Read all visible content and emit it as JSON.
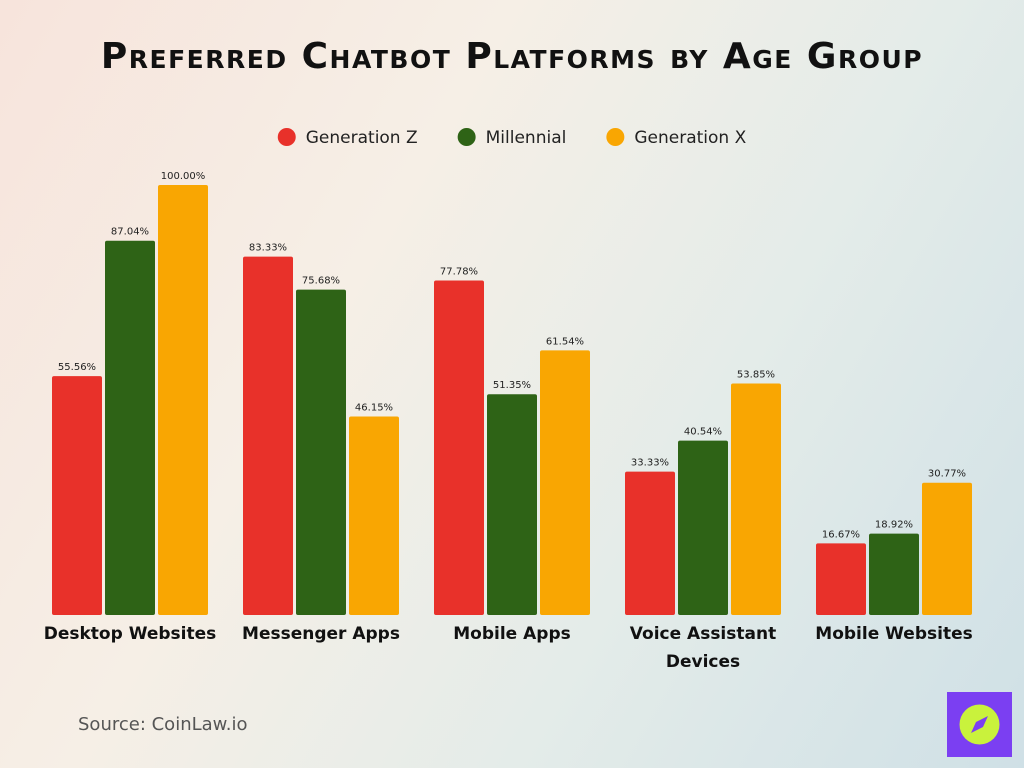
{
  "chart_data": {
    "type": "bar",
    "title": "Preferred Chatbot Platforms by Age Group",
    "categories": [
      "Desktop Websites",
      "Messenger Apps",
      "Mobile Apps",
      "Voice Assistant Devices",
      "Mobile Websites"
    ],
    "series": [
      {
        "name": "Generation Z",
        "color": "#e8312a",
        "values": [
          55.56,
          83.33,
          77.78,
          33.33,
          16.67
        ],
        "value_labels": [
          "55.56%",
          "83.33%",
          "77.78%",
          "33.33%",
          "16.67%"
        ]
      },
      {
        "name": "Millennial",
        "color": "#2e6316",
        "values": [
          87.04,
          75.68,
          51.35,
          40.54,
          18.92
        ],
        "value_labels": [
          "87.04%",
          "75.68%",
          "51.35%",
          "40.54%",
          "18.92%"
        ]
      },
      {
        "name": "Generation X",
        "color": "#f9a602",
        "values": [
          100.0,
          46.15,
          61.54,
          53.85,
          30.77
        ],
        "value_labels": [
          "100.00%",
          "46.15%",
          "61.54%",
          "53.85%",
          "30.77%"
        ]
      }
    ],
    "source": "Source: CoinLaw.io"
  }
}
